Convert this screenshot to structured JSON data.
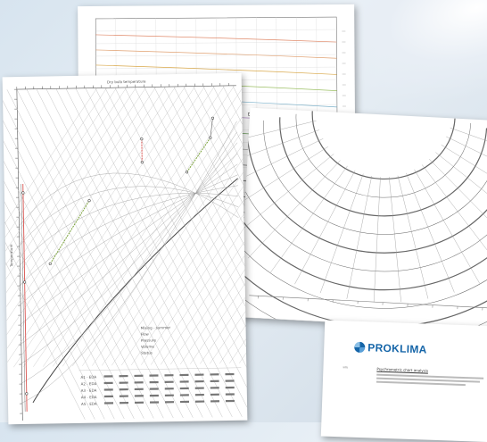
{
  "brand": {
    "name": "PROKLIMA",
    "colors": {
      "brand": "#1565a8",
      "chart_red": "#d9534f",
      "chart_green": "#7aa23a",
      "grid": "#9a9a9a"
    }
  },
  "icons": {
    "logo": "proklima-logo-icon"
  },
  "main_chart": {
    "top_axis_label": "Dry bulb temperature",
    "left_axis_label": "Temperature",
    "summary_lines": [
      "Mixing - summer",
      "Flow",
      "Pressure",
      "Volume",
      "Status"
    ],
    "table_rows": [
      {
        "label": "A1 - EDA",
        "color": "#7aa23a"
      },
      {
        "label": "A2 - EDA",
        "color": "#7aa23a"
      },
      {
        "label": "A3 - EDA",
        "color": "#d9534f"
      },
      {
        "label": "A4 - EDA",
        "color": "#d9534f"
      },
      {
        "label": "A5 - EDA",
        "color": "#7aa23a"
      }
    ]
  },
  "doc": {
    "label": "Info",
    "heading": "Psychrometric chart analysis"
  }
}
